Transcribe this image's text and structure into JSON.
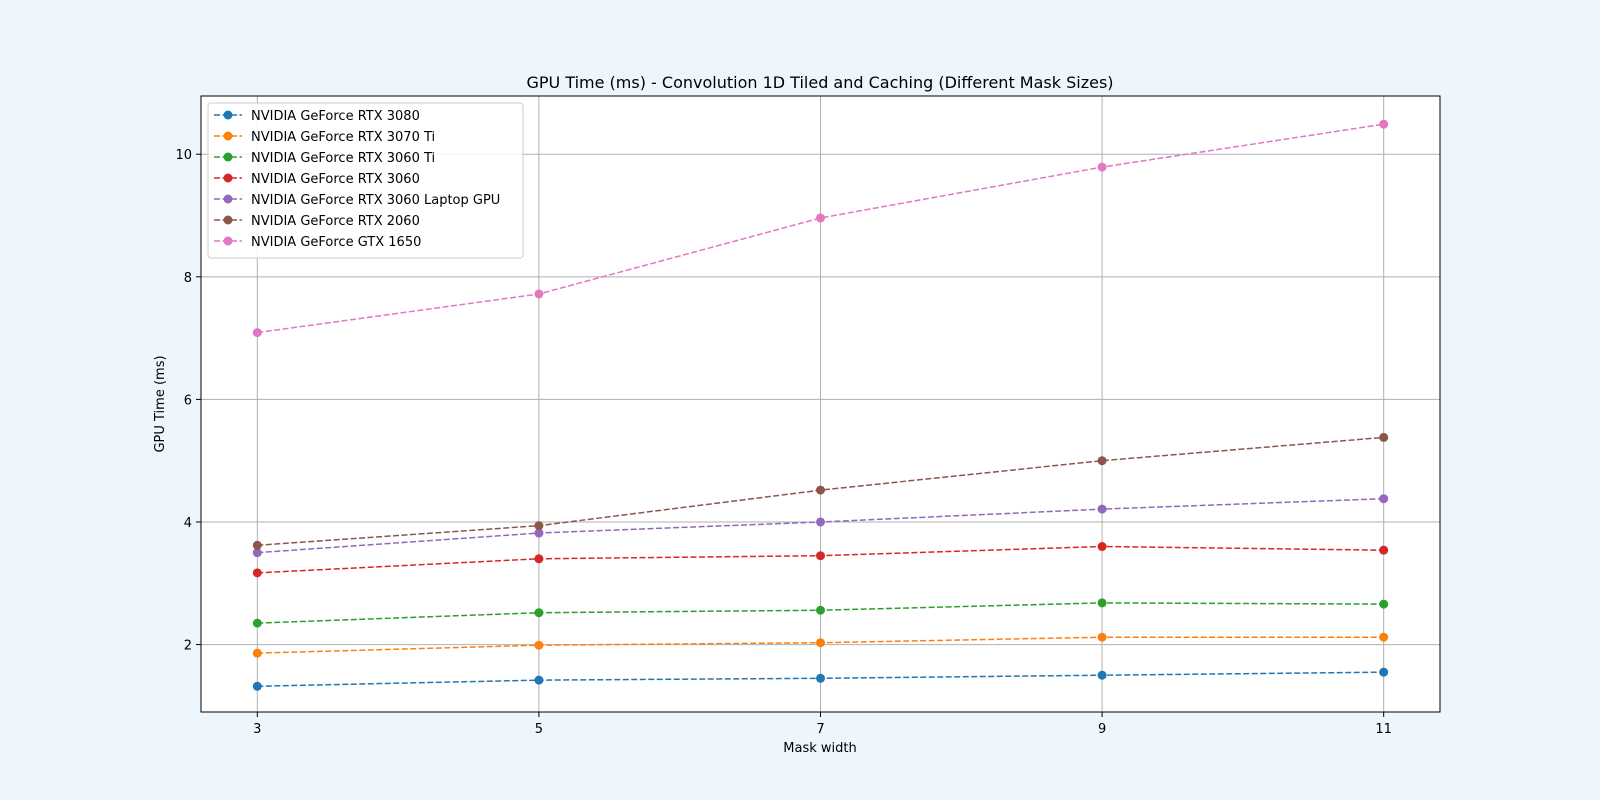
{
  "chart_data": {
    "type": "line",
    "title": "GPU Time (ms) - Convolution 1D Tiled and Caching (Different Mask Sizes)",
    "xlabel": "Mask width",
    "ylabel": "GPU Time (ms)",
    "x": [
      3,
      5,
      7,
      9,
      11
    ],
    "x_ticks": [
      "3",
      "5",
      "7",
      "9",
      "11"
    ],
    "y_ticks": [
      2,
      4,
      6,
      8,
      10
    ],
    "xlim": [
      2.6,
      11.4
    ],
    "ylim": [
      0.9,
      10.95
    ],
    "grid": true,
    "legend_position": "top-left",
    "line_style": "dashed",
    "marker": "circle",
    "series": [
      {
        "name": "NVIDIA GeForce RTX 3080",
        "color": "#1f77b4",
        "values": [
          1.32,
          1.42,
          1.45,
          1.5,
          1.55
        ]
      },
      {
        "name": "NVIDIA GeForce RTX 3070 Ti",
        "color": "#ff7f0e",
        "values": [
          1.86,
          1.99,
          2.03,
          2.12,
          2.12
        ]
      },
      {
        "name": "NVIDIA GeForce RTX 3060 Ti",
        "color": "#2ca02c",
        "values": [
          2.35,
          2.52,
          2.56,
          2.68,
          2.66
        ]
      },
      {
        "name": "NVIDIA GeForce RTX 3060",
        "color": "#d62728",
        "values": [
          3.17,
          3.4,
          3.45,
          3.6,
          3.54
        ]
      },
      {
        "name": "NVIDIA GeForce RTX 3060 Laptop GPU",
        "color": "#9467bd",
        "values": [
          3.5,
          3.82,
          4.0,
          4.21,
          4.38
        ]
      },
      {
        "name": "NVIDIA GeForce RTX 2060",
        "color": "#8c564b",
        "values": [
          3.62,
          3.94,
          4.52,
          5.0,
          5.38
        ]
      },
      {
        "name": "NVIDIA GeForce GTX 1650",
        "color": "#e377c2",
        "values": [
          7.09,
          7.72,
          8.96,
          9.79,
          10.49
        ]
      }
    ]
  }
}
